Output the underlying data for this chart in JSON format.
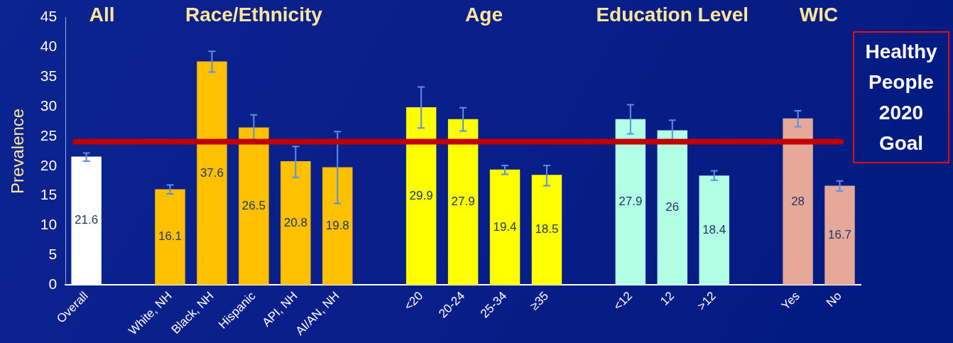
{
  "chart_data": {
    "type": "bar",
    "ylabel": "Prevalence",
    "categories": [
      "Overall",
      null,
      "White, NH",
      "Black, NH",
      "Hispanic",
      "API, NH",
      "AI/AN, NH",
      null,
      "<20",
      "20-24",
      "25-34",
      "≥35",
      null,
      "<12",
      "12",
      ">12",
      null,
      "Yes",
      "No"
    ],
    "values": [
      21.6,
      null,
      16.1,
      37.6,
      26.5,
      20.8,
      19.8,
      null,
      29.9,
      27.9,
      19.4,
      18.5,
      null,
      27.9,
      26,
      18.4,
      null,
      28,
      16.7
    ],
    "colors": [
      "#ffffff",
      "#ffffff",
      "#ffc000",
      "#ffc000",
      "#ffc000",
      "#ffc000",
      "#ffc000",
      "#ffff00",
      "#ffff00",
      "#ffff00",
      "#ffff00",
      "#ffff00",
      "#b3ffe6",
      "#b3ffe6",
      "#b3ffe6",
      "#b3ffe6",
      "#e6a898",
      "#e6a898",
      "#e6a898"
    ],
    "errors": [
      [
        20.8,
        22.2
      ],
      null,
      [
        15.3,
        16.8
      ],
      [
        35.8,
        39.3
      ],
      [
        24.4,
        28.6
      ],
      [
        18.1,
        23.3
      ],
      [
        13.7,
        25.8
      ],
      null,
      [
        26.4,
        33.3
      ],
      [
        25.9,
        29.8
      ],
      [
        18.6,
        20.1
      ],
      [
        16.7,
        20.1
      ],
      null,
      [
        25.4,
        30.3
      ],
      [
        24.3,
        27.7
      ],
      [
        17.6,
        19.2
      ],
      null,
      [
        26.6,
        29.3
      ],
      [
        15.8,
        17.5
      ]
    ],
    "ylim": [
      0,
      45
    ],
    "yticks": [
      0,
      5,
      10,
      15,
      20,
      25,
      30,
      35,
      40,
      45
    ],
    "grid": false,
    "legend": false,
    "data_labels": true,
    "ref_lines": [
      {
        "axis": "y",
        "value": 24.1,
        "label": "Healthy People 2020 Goal",
        "color": "#c00000"
      }
    ],
    "annotations": [
      "All",
      "Race/Ethnicity",
      "Age",
      "Education Level",
      "WIC"
    ]
  }
}
